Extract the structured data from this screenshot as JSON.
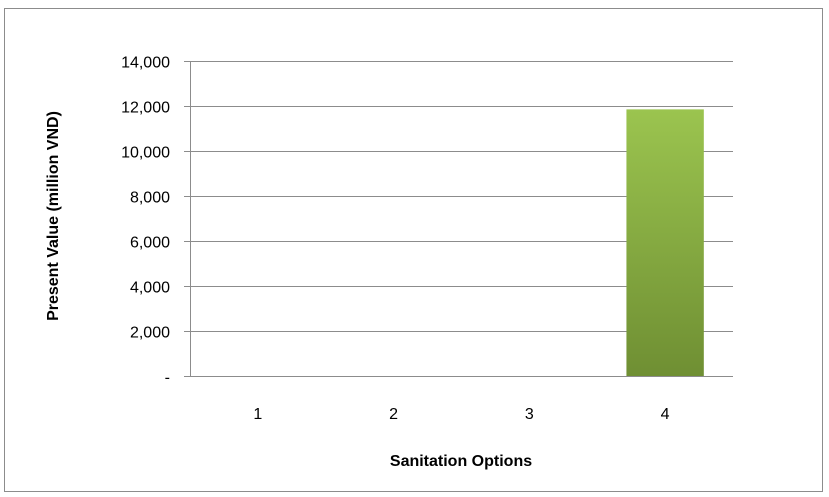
{
  "chart_data": {
    "type": "bar",
    "title": "",
    "xlabel": "Sanitation Options",
    "ylabel": "Present Value (million VND)",
    "categories": [
      "1",
      "2",
      "3",
      "4"
    ],
    "values": [
      0,
      0,
      0,
      11850
    ],
    "ylim": [
      0,
      14000
    ],
    "yticks": [
      0,
      2000,
      4000,
      6000,
      8000,
      10000,
      12000,
      14000
    ],
    "ytick_labels": [
      "-",
      "2,000",
      "4,000",
      "6,000",
      "8,000",
      "10,000",
      "12,000",
      "14,000"
    ],
    "grid": true,
    "legend": "none",
    "colors": {
      "bar_top": "#9bc44f",
      "bar_bottom": "#6f8f33",
      "grid": "#8c8c8c"
    }
  }
}
